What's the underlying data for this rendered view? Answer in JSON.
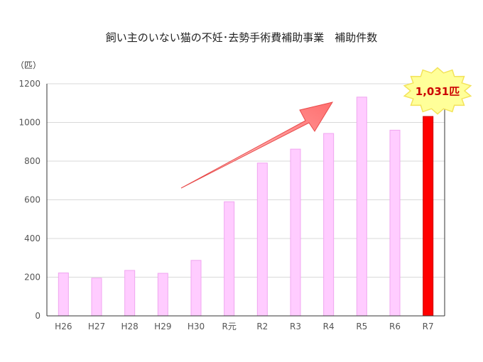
{
  "chart_data": {
    "type": "bar",
    "title": "飼い主のいない猫の不妊･去勢手術費補助事業　補助件数",
    "unit_label": "（匹）",
    "xlabel": "",
    "ylabel": "",
    "ylim": [
      0,
      1200
    ],
    "yticks": [
      0,
      200,
      400,
      600,
      800,
      1000,
      1200
    ],
    "categories": [
      "H26",
      "H27",
      "H28",
      "H29",
      "H30",
      "R元",
      "R2",
      "R3",
      "R4",
      "R5",
      "R6",
      "R7"
    ],
    "values": [
      222,
      195,
      235,
      220,
      287,
      590,
      790,
      862,
      943,
      1131,
      960,
      1031
    ],
    "grid": true,
    "highlight_index": 11,
    "colors": {
      "bar": "#ffccff",
      "highlight": "#ff0000",
      "callout_fill": "#ffff99",
      "arrow": "#ff7f7f"
    },
    "annotation": {
      "text": "1,031匹",
      "shape": "starburst-callout",
      "target": "R7"
    },
    "trend_arrow": {
      "from": "H30",
      "to": "R5",
      "color": "#ff7f7f"
    }
  }
}
